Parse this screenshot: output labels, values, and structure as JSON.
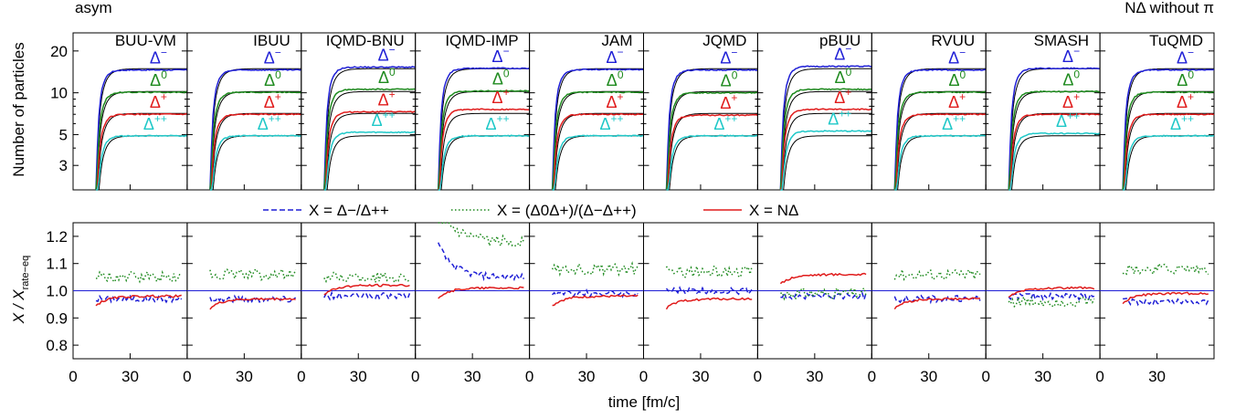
{
  "header": {
    "left_label": "asym",
    "right_label": "NΔ without π"
  },
  "chart_data": [
    {
      "type": "line",
      "panel": "top",
      "ylabel": "Number of particles",
      "yscale": "log",
      "ylim": [
        2.0,
        27.0
      ],
      "xlim": [
        0,
        60
      ],
      "yticks": [
        3,
        5,
        10,
        20
      ],
      "ytick_labels": [
        "3",
        "5",
        "10",
        "20"
      ],
      "models": [
        "BUU-VM",
        "IBUU",
        "IQMD-BNU",
        "IQMD-IMP",
        "JAM",
        "JQMD",
        "pBUU",
        "RVUU",
        "SMASH",
        "TuQMD"
      ],
      "species": [
        {
          "label": "Δ",
          "sup": "−",
          "color": "#1f1fd6",
          "rate_eq_plateau": 14.9
        },
        {
          "label": "Δ",
          "sup": "0",
          "color": "#1e8a1e",
          "rate_eq_plateau": 10.2
        },
        {
          "label": "Δ",
          "sup": "+",
          "color": "#e01b1b",
          "rate_eq_plateau": 7.1
        },
        {
          "label": "Δ",
          "sup": "++",
          "color": "#1fc8c8",
          "rate_eq_plateau": 4.9
        }
      ],
      "reference_curve_color": "#000000",
      "model_plateaus": {
        "BUU-VM": [
          14.6,
          10.1,
          7.0,
          4.9
        ],
        "IBUU": [
          14.6,
          10.1,
          7.0,
          4.9
        ],
        "IQMD-BNU": [
          15.3,
          10.6,
          7.3,
          5.2
        ],
        "IQMD-IMP": [
          15.0,
          10.3,
          7.6,
          4.9
        ],
        "JAM": [
          14.7,
          10.1,
          7.0,
          4.9
        ],
        "JQMD": [
          14.6,
          10.0,
          6.9,
          4.9
        ],
        "pBUU": [
          15.5,
          10.6,
          7.6,
          5.3
        ],
        "RVUU": [
          14.6,
          10.1,
          7.0,
          4.9
        ],
        "SMASH": [
          15.0,
          10.2,
          7.0,
          5.1
        ],
        "TuQMD": [
          14.6,
          10.1,
          7.0,
          4.9
        ]
      }
    },
    {
      "type": "line",
      "panel": "bottom",
      "ylabel": "X / X",
      "ylabel_sub": "rate−eq",
      "xlabel": "time [fm/c]",
      "ylim": [
        0.75,
        1.25
      ],
      "xlim": [
        0,
        60
      ],
      "yticks": [
        0.8,
        0.9,
        1.0,
        1.1,
        1.2
      ],
      "ytick_labels": [
        "0.8",
        "0.9",
        "1.0",
        "1.1",
        "1.2"
      ],
      "xticks": [
        0,
        30
      ],
      "xtick_labels": [
        "0",
        "30"
      ],
      "reference_line": 1.0,
      "legend": [
        {
          "text": "X = Δ−/Δ++",
          "color": "#1f1fd6",
          "style": "dashed"
        },
        {
          "text": "X = (Δ0Δ+)/(Δ−Δ++)",
          "color": "#1e8a1e",
          "style": "dotted"
        },
        {
          "text": "X = NΔ",
          "color": "#e01b1b",
          "style": "solid"
        }
      ],
      "ratio_levels": {
        "BUU-VM": {
          "dm_dpp": 0.97,
          "d0dp": 1.05,
          "ndelta": 0.98
        },
        "IBUU": {
          "dm_dpp": 0.97,
          "d0dp": 1.06,
          "ndelta": 0.97
        },
        "IQMD-BNU": {
          "dm_dpp": 0.98,
          "d0dp": 1.05,
          "ndelta": 1.02
        },
        "IQMD-IMP": {
          "dm_dpp": 1.05,
          "d0dp": 1.18,
          "ndelta": 1.01
        },
        "JAM": {
          "dm_dpp": 0.99,
          "d0dp": 1.08,
          "ndelta": 0.98
        },
        "JQMD": {
          "dm_dpp": 1.0,
          "d0dp": 1.07,
          "ndelta": 0.97
        },
        "pBUU": {
          "dm_dpp": 0.98,
          "d0dp": 0.99,
          "ndelta": 1.06
        },
        "RVUU": {
          "dm_dpp": 0.97,
          "d0dp": 1.06,
          "ndelta": 0.97
        },
        "SMASH": {
          "dm_dpp": 0.98,
          "d0dp": 0.96,
          "ndelta": 1.01
        },
        "TuQMD": {
          "dm_dpp": 0.96,
          "d0dp": 1.08,
          "ndelta": 0.99
        }
      }
    }
  ]
}
